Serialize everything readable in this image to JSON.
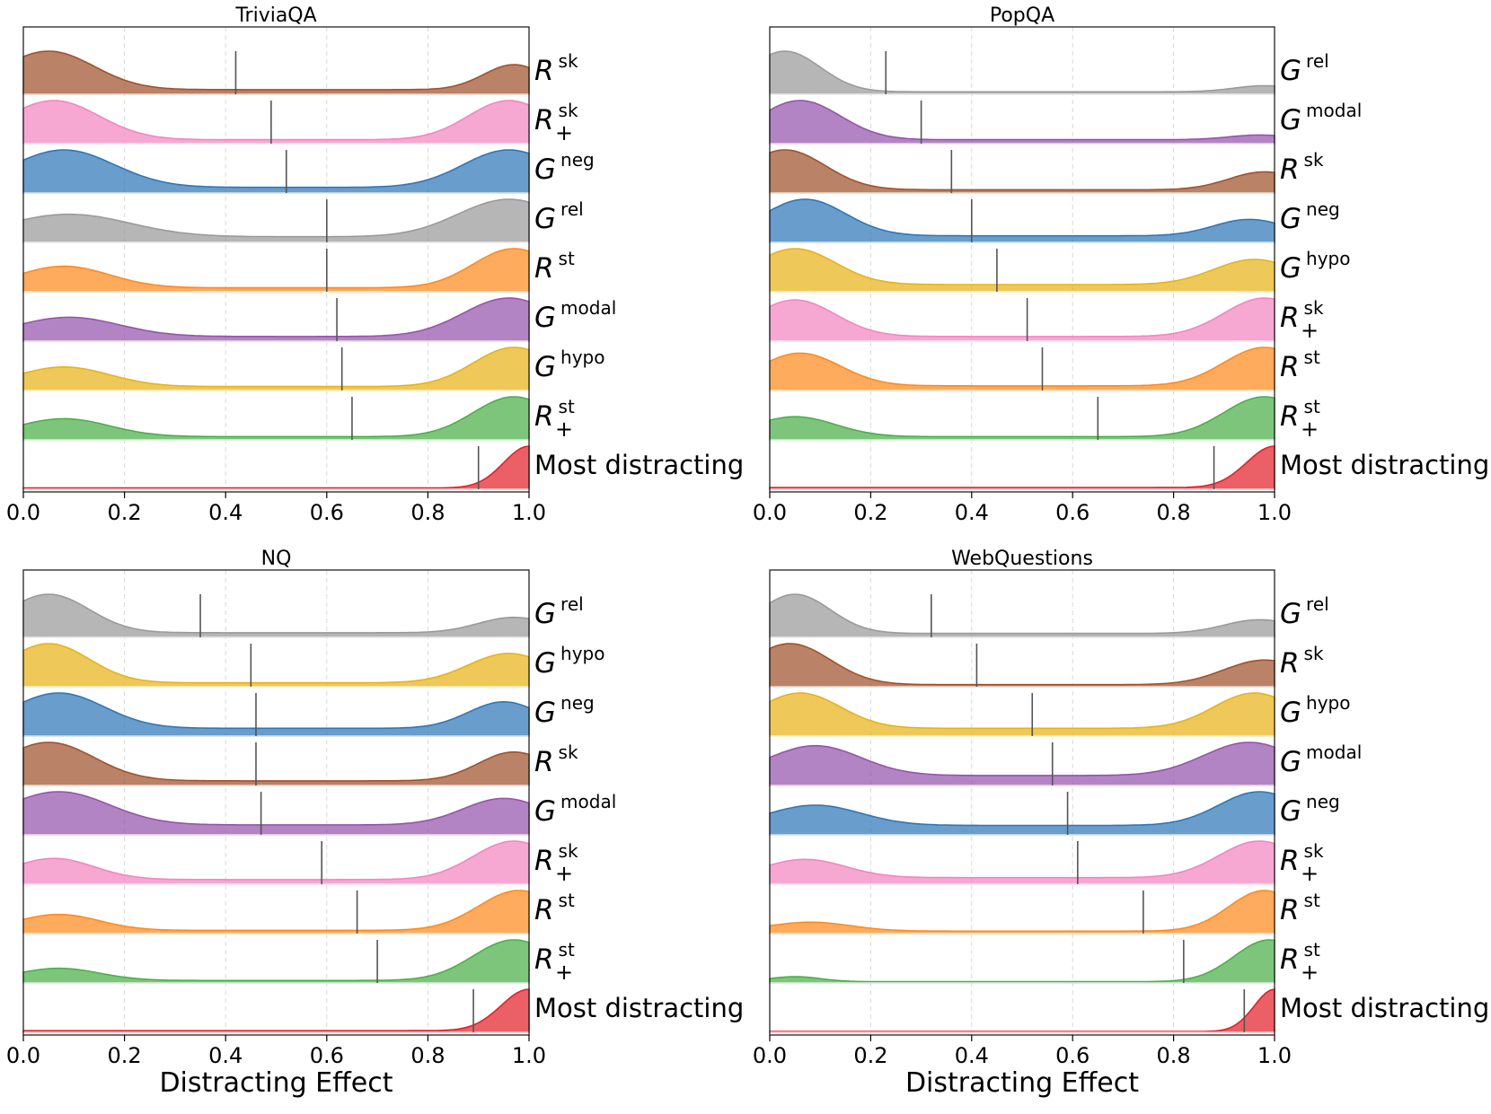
{
  "colors": {
    "Rsk": "#a0522d",
    "Rsk+": "#f386c0",
    "Gneg": "#2f77b8",
    "Grel": "#9a9a9a",
    "Rst": "#ff8a1e",
    "Gmodal": "#9654ac",
    "Ghypo": "#e7b319",
    "Rst+": "#4caf4a",
    "Most": "#e3212b"
  },
  "chart_data": [
    {
      "type": "area",
      "title": "TriviaQA",
      "xlabel": "",
      "xlim": [
        0,
        1
      ],
      "xticks": [
        "0.0",
        "0.2",
        "0.4",
        "0.6",
        "0.8",
        "1.0"
      ],
      "grid_x": true,
      "rows": [
        {
          "key": "Rsk",
          "base": "R",
          "sup": "sk",
          "sub": "",
          "median": 0.42,
          "peaks": [
            [
              0.05,
              1.0,
              0.09
            ],
            [
              0.97,
              0.65,
              0.06
            ]
          ],
          "floor": 0.12
        },
        {
          "key": "Rsk+",
          "base": "R",
          "sup": "sk",
          "sub": "+",
          "median": 0.49,
          "peaks": [
            [
              0.06,
              1.0,
              0.09
            ],
            [
              0.96,
              1.0,
              0.08
            ]
          ],
          "floor": 0.1
        },
        {
          "key": "Gneg",
          "base": "G",
          "sup": "neg",
          "sub": "",
          "median": 0.52,
          "peaks": [
            [
              0.08,
              1.0,
              0.1
            ],
            [
              0.96,
              1.0,
              0.09
            ]
          ],
          "floor": 0.15
        },
        {
          "key": "Grel",
          "base": "G",
          "sup": "rel",
          "sub": "",
          "median": 0.6,
          "peaks": [
            [
              0.09,
              0.6,
              0.12
            ],
            [
              0.96,
              1.0,
              0.1
            ]
          ],
          "floor": 0.15
        },
        {
          "key": "Rst",
          "base": "R",
          "sup": "st",
          "sub": "",
          "median": 0.6,
          "peaks": [
            [
              0.08,
              0.55,
              0.09
            ],
            [
              0.97,
              1.0,
              0.08
            ]
          ],
          "floor": 0.1
        },
        {
          "key": "Gmodal",
          "base": "G",
          "sup": "modal",
          "sub": "",
          "median": 0.62,
          "peaks": [
            [
              0.09,
              0.5,
              0.1
            ],
            [
              0.96,
              1.0,
              0.09
            ]
          ],
          "floor": 0.12
        },
        {
          "key": "Ghypo",
          "base": "G",
          "sup": "hypo",
          "sub": "",
          "median": 0.63,
          "peaks": [
            [
              0.08,
              0.5,
              0.09
            ],
            [
              0.97,
              1.0,
              0.08
            ]
          ],
          "floor": 0.1
        },
        {
          "key": "Rst+",
          "base": "R",
          "sup": "st",
          "sub": "+",
          "median": 0.65,
          "peaks": [
            [
              0.08,
              0.45,
              0.09
            ],
            [
              0.97,
              1.0,
              0.08
            ]
          ],
          "floor": 0.08
        },
        {
          "key": "Most",
          "base": "",
          "sup": "",
          "sub": "",
          "label": "Most distracting",
          "median": 0.9,
          "peaks": [
            [
              1.0,
              1.0,
              0.05
            ]
          ],
          "floor": 0.03
        }
      ]
    },
    {
      "type": "area",
      "title": "PopQA",
      "xlabel": "",
      "xlim": [
        0,
        1
      ],
      "xticks": [
        "0.0",
        "0.2",
        "0.4",
        "0.6",
        "0.8",
        "1.0"
      ],
      "grid_x": true,
      "rows": [
        {
          "key": "Grel",
          "base": "G",
          "sup": "rel",
          "sub": "",
          "median": 0.23,
          "peaks": [
            [
              0.03,
              1.0,
              0.07
            ],
            [
              0.98,
              0.15,
              0.06
            ]
          ],
          "floor": 0.06
        },
        {
          "key": "Gmodal",
          "base": "G",
          "sup": "modal",
          "sub": "",
          "median": 0.3,
          "peaks": [
            [
              0.06,
              1.0,
              0.08
            ],
            [
              0.97,
              0.12,
              0.06
            ]
          ],
          "floor": 0.1
        },
        {
          "key": "Rsk",
          "base": "R",
          "sup": "sk",
          "sub": "",
          "median": 0.36,
          "peaks": [
            [
              0.03,
              1.0,
              0.08
            ],
            [
              0.98,
              0.45,
              0.07
            ]
          ],
          "floor": 0.08
        },
        {
          "key": "Gneg",
          "base": "G",
          "sup": "neg",
          "sub": "",
          "median": 0.4,
          "peaks": [
            [
              0.07,
              1.0,
              0.08
            ],
            [
              0.95,
              0.45,
              0.07
            ]
          ],
          "floor": 0.18
        },
        {
          "key": "Ghypo",
          "base": "G",
          "sup": "hypo",
          "sub": "",
          "median": 0.45,
          "peaks": [
            [
              0.05,
              1.0,
              0.08
            ],
            [
              0.96,
              0.7,
              0.08
            ]
          ],
          "floor": 0.2
        },
        {
          "key": "Rsk+",
          "base": "R",
          "sup": "sk",
          "sub": "+",
          "median": 0.51,
          "peaks": [
            [
              0.05,
              0.95,
              0.08
            ],
            [
              0.98,
              1.0,
              0.08
            ]
          ],
          "floor": 0.12
        },
        {
          "key": "Rst",
          "base": "R",
          "sup": "st",
          "sub": "",
          "median": 0.54,
          "peaks": [
            [
              0.06,
              0.85,
              0.08
            ],
            [
              0.98,
              1.0,
              0.08
            ]
          ],
          "floor": 0.12
        },
        {
          "key": "Rst+",
          "base": "R",
          "sup": "st",
          "sub": "+",
          "median": 0.65,
          "peaks": [
            [
              0.05,
              0.5,
              0.08
            ],
            [
              0.98,
              1.0,
              0.08
            ]
          ],
          "floor": 0.08
        },
        {
          "key": "Most",
          "base": "",
          "sup": "",
          "sub": "",
          "label": "Most distracting",
          "median": 0.88,
          "peaks": [
            [
              1.0,
              1.0,
              0.055
            ]
          ],
          "floor": 0.04
        }
      ]
    },
    {
      "type": "area",
      "title": "NQ",
      "xlabel": "Distracting Effect",
      "xlim": [
        0,
        1
      ],
      "xticks": [
        "0.0",
        "0.2",
        "0.4",
        "0.6",
        "0.8",
        "1.0"
      ],
      "grid_x": true,
      "rows": [
        {
          "key": "Grel",
          "base": "G",
          "sup": "rel",
          "sub": "",
          "median": 0.35,
          "peaks": [
            [
              0.05,
              1.0,
              0.08
            ],
            [
              0.97,
              0.4,
              0.07
            ]
          ],
          "floor": 0.12
        },
        {
          "key": "Ghypo",
          "base": "G",
          "sup": "hypo",
          "sub": "",
          "median": 0.45,
          "peaks": [
            [
              0.05,
              1.0,
              0.08
            ],
            [
              0.96,
              0.75,
              0.08
            ]
          ],
          "floor": 0.1
        },
        {
          "key": "Gneg",
          "base": "G",
          "sup": "neg",
          "sub": "",
          "median": 0.46,
          "peaks": [
            [
              0.07,
              1.0,
              0.09
            ],
            [
              0.95,
              0.75,
              0.07
            ]
          ],
          "floor": 0.22
        },
        {
          "key": "Rsk",
          "base": "R",
          "sup": "sk",
          "sub": "",
          "median": 0.46,
          "peaks": [
            [
              0.05,
              1.0,
              0.09
            ],
            [
              0.97,
              0.75,
              0.07
            ]
          ],
          "floor": 0.12
        },
        {
          "key": "Gmodal",
          "base": "G",
          "sup": "modal",
          "sub": "",
          "median": 0.47,
          "peaks": [
            [
              0.07,
              1.0,
              0.1
            ],
            [
              0.95,
              0.8,
              0.08
            ]
          ],
          "floor": 0.3
        },
        {
          "key": "Rsk+",
          "base": "R",
          "sup": "sk",
          "sub": "+",
          "median": 0.59,
          "peaks": [
            [
              0.06,
              0.55,
              0.08
            ],
            [
              0.97,
              1.0,
              0.08
            ]
          ],
          "floor": 0.12
        },
        {
          "key": "Rst",
          "base": "R",
          "sup": "st",
          "sub": "",
          "median": 0.66,
          "peaks": [
            [
              0.07,
              0.4,
              0.08
            ],
            [
              0.98,
              1.0,
              0.08
            ]
          ],
          "floor": 0.08
        },
        {
          "key": "Rst+",
          "base": "R",
          "sup": "st",
          "sub": "+",
          "median": 0.7,
          "peaks": [
            [
              0.07,
              0.3,
              0.08
            ],
            [
              0.97,
              1.0,
              0.08
            ]
          ],
          "floor": 0.06
        },
        {
          "key": "Most",
          "base": "",
          "sup": "",
          "sub": "",
          "label": "Most distracting",
          "median": 0.89,
          "peaks": [
            [
              1.0,
              1.0,
              0.055
            ]
          ],
          "floor": 0.04
        }
      ]
    },
    {
      "type": "area",
      "title": "WebQuestions",
      "xlabel": "Distracting Effect",
      "xlim": [
        0,
        1
      ],
      "xticks": [
        "0.0",
        "0.2",
        "0.4",
        "0.6",
        "0.8",
        "1.0"
      ],
      "grid_x": true,
      "rows": [
        {
          "key": "Grel",
          "base": "G",
          "sup": "rel",
          "sub": "",
          "median": 0.32,
          "peaks": [
            [
              0.05,
              1.0,
              0.07
            ],
            [
              0.97,
              0.35,
              0.07
            ]
          ],
          "floor": 0.1
        },
        {
          "key": "Rsk",
          "base": "R",
          "sup": "sk",
          "sub": "",
          "median": 0.41,
          "peaks": [
            [
              0.04,
              1.0,
              0.08
            ],
            [
              0.98,
              0.6,
              0.08
            ]
          ],
          "floor": 0.05
        },
        {
          "key": "Ghypo",
          "base": "G",
          "sup": "hypo",
          "sub": "",
          "median": 0.52,
          "peaks": [
            [
              0.06,
              1.0,
              0.08
            ],
            [
              0.96,
              1.0,
              0.08
            ]
          ],
          "floor": 0.22
        },
        {
          "key": "Gmodal",
          "base": "G",
          "sup": "modal",
          "sub": "",
          "median": 0.56,
          "peaks": [
            [
              0.09,
              0.9,
              0.09
            ],
            [
              0.95,
              1.0,
              0.09
            ]
          ],
          "floor": 0.3
        },
        {
          "key": "Gneg",
          "base": "G",
          "sup": "neg",
          "sub": "",
          "median": 0.59,
          "peaks": [
            [
              0.09,
              0.6,
              0.09
            ],
            [
              0.97,
              1.0,
              0.08
            ]
          ],
          "floor": 0.28
        },
        {
          "key": "Rsk+",
          "base": "R",
          "sup": "sk",
          "sub": "+",
          "median": 0.61,
          "peaks": [
            [
              0.07,
              0.5,
              0.08
            ],
            [
              0.97,
              1.0,
              0.08
            ]
          ],
          "floor": 0.18
        },
        {
          "key": "Rst",
          "base": "R",
          "sup": "st",
          "sub": "",
          "median": 0.74,
          "peaks": [
            [
              0.08,
              0.22,
              0.08
            ],
            [
              0.98,
              1.0,
              0.07
            ]
          ],
          "floor": 0.06
        },
        {
          "key": "Rst+",
          "base": "R",
          "sup": "st",
          "sub": "+",
          "median": 0.82,
          "peaks": [
            [
              0.05,
              0.12,
              0.05
            ],
            [
              0.99,
              1.0,
              0.07
            ]
          ],
          "floor": 0.03
        },
        {
          "key": "Most",
          "base": "",
          "sup": "",
          "sub": "",
          "label": "Most distracting",
          "median": 0.94,
          "peaks": [
            [
              1.0,
              1.0,
              0.04
            ]
          ],
          "floor": 0.02
        }
      ]
    }
  ]
}
